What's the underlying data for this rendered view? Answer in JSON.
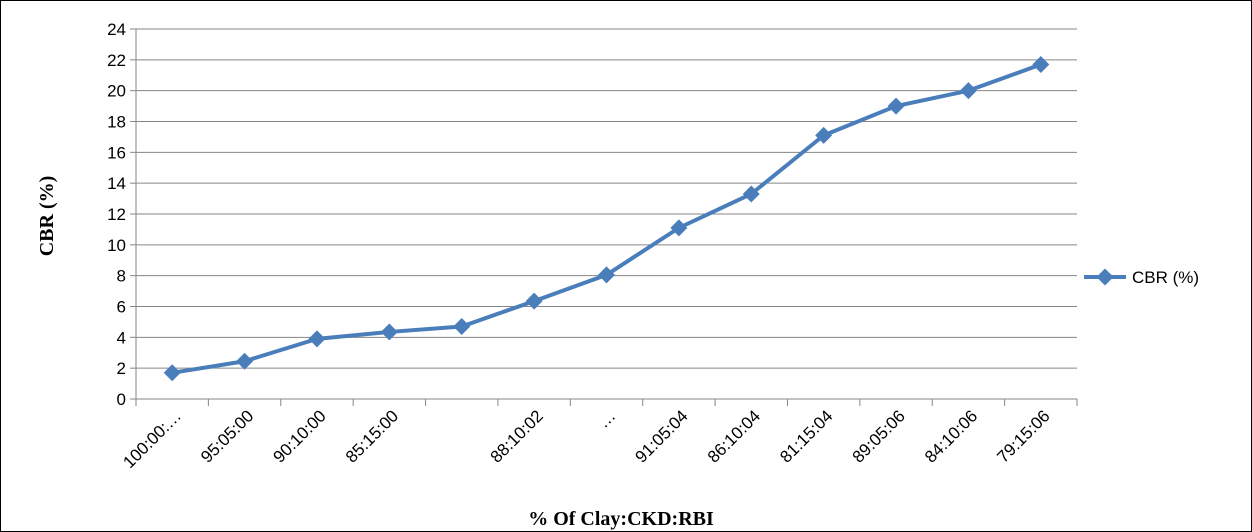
{
  "chart_data": {
    "type": "line",
    "title": "",
    "xlabel": "% Of Clay:CKD:RBI",
    "ylabel": "CBR (%)",
    "ylim": [
      0,
      24
    ],
    "ytick_step": 2,
    "grid": true,
    "legend_position": "right",
    "categories": [
      "100:00:…",
      "95:05:00",
      "90:10:00",
      "85:15:00",
      "",
      "88:10:02",
      "…",
      "91:05:04",
      "86:10:04",
      "81:15:04",
      "89:05:06",
      "84:10:06",
      "79:15:06"
    ],
    "series": [
      {
        "name": "CBR (%)",
        "color": "#4a7ebb",
        "values": [
          1.7,
          2.45,
          3.9,
          4.35,
          4.7,
          6.35,
          8.05,
          11.1,
          13.3,
          17.1,
          19.0,
          20.0,
          21.7
        ]
      }
    ]
  }
}
